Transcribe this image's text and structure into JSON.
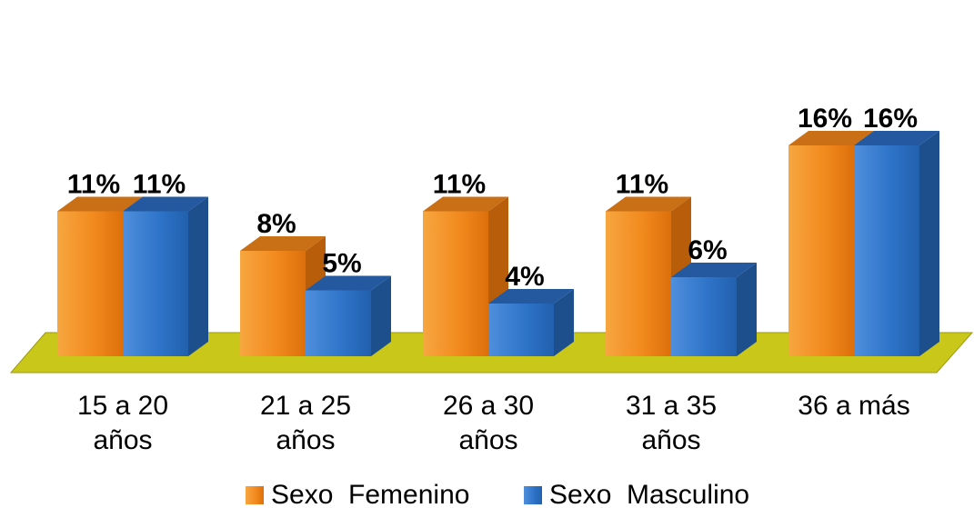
{
  "chart_data": {
    "type": "bar",
    "categories": [
      [
        "15 a 20",
        "años"
      ],
      [
        "21 a 25",
        "años"
      ],
      [
        "26 a 30",
        "años"
      ],
      [
        "31 a 35",
        "años"
      ],
      [
        "36 a más"
      ]
    ],
    "series": [
      {
        "name": "Sexo  Femenino",
        "values": [
          11,
          8,
          11,
          11,
          16
        ],
        "labels": [
          "11%",
          "8%",
          "11%",
          "11%",
          "16%"
        ],
        "color": "#f28a1e"
      },
      {
        "name": "Sexo  Masculino",
        "values": [
          11,
          5,
          4,
          6,
          16
        ],
        "labels": [
          "11%",
          "5%",
          "4%",
          "6%",
          "16%"
        ],
        "color": "#2e74c9"
      }
    ],
    "ylim": [
      0,
      16
    ],
    "grid": false,
    "legend_position": "bottom",
    "floor_color": "#c9c81a"
  }
}
